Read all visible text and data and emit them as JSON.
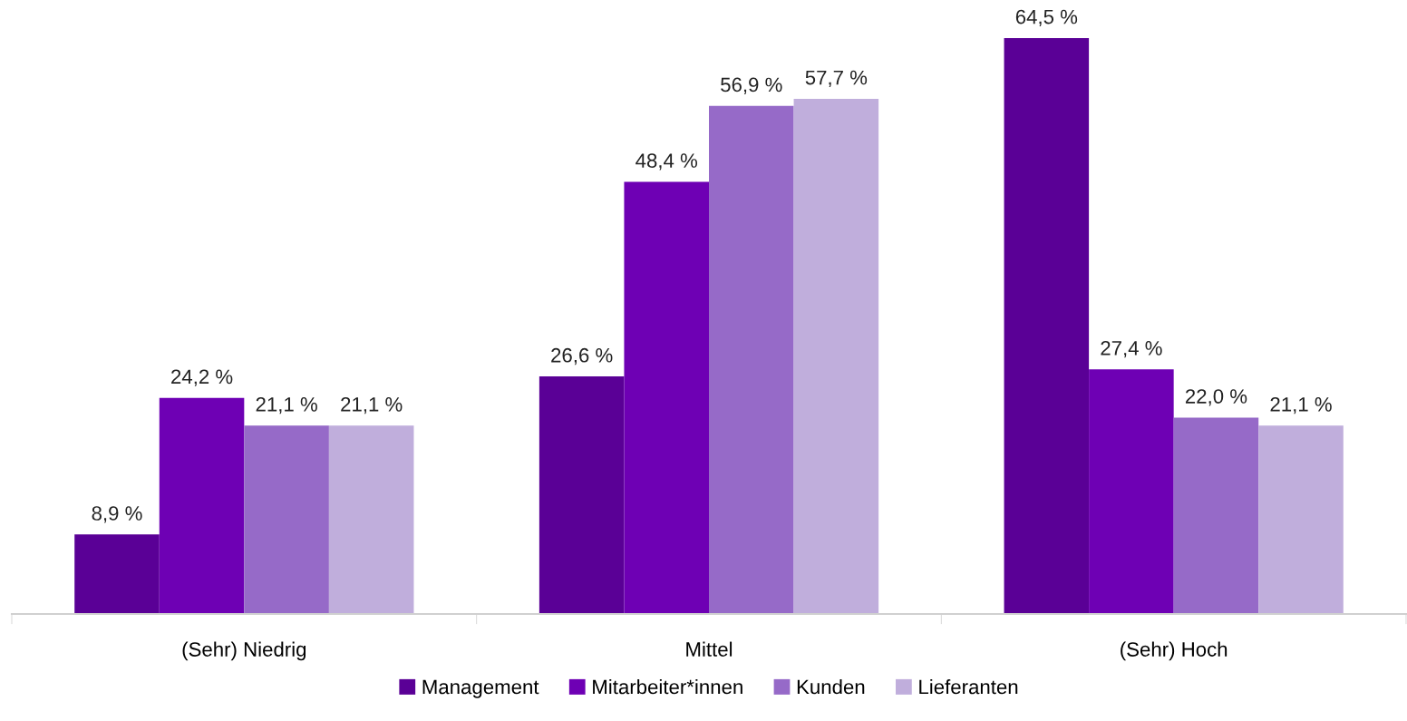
{
  "chart_data": {
    "type": "bar",
    "categories": [
      "(Sehr) Niedrig",
      "Mittel",
      "(Sehr) Hoch"
    ],
    "tick_labels": "x",
    "grid": false,
    "legend": "bottom",
    "series": [
      {
        "name": "Management",
        "color": "#5a0096",
        "values": [
          8.9,
          26.6,
          64.5
        ],
        "value_labels": [
          "8,9 %",
          "26,6 %",
          "64,5 %"
        ]
      },
      {
        "name": "Mitarbeiter*innen",
        "color": "#6e00b4",
        "values": [
          24.2,
          48.4,
          27.4
        ],
        "value_labels": [
          "24,2 %",
          "48,4 %",
          "27,4 %"
        ]
      },
      {
        "name": "Kunden",
        "color": "#966ac8",
        "values": [
          21.1,
          56.9,
          22.0
        ],
        "value_labels": [
          "21,1 %",
          "56,9 %",
          "22,0 %"
        ]
      },
      {
        "name": "Lieferanten",
        "color": "#c0aedc",
        "values": [
          21.1,
          57.7,
          21.1
        ],
        "value_labels": [
          "21,1 %",
          "57,7 %",
          "21,1 %"
        ]
      }
    ]
  }
}
